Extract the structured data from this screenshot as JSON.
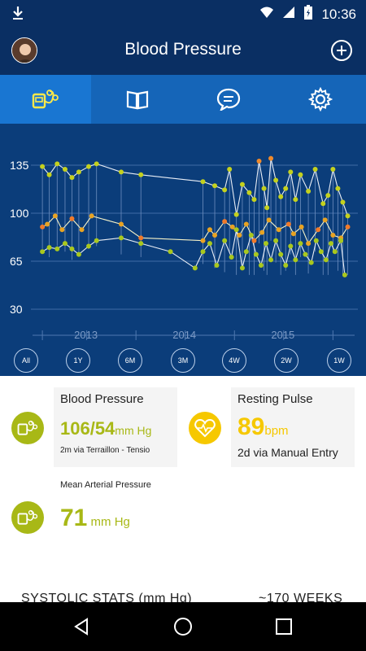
{
  "status_bar": {
    "time": "10:36"
  },
  "app_bar": {
    "title": "Blood Pressure"
  },
  "tabs": [
    {
      "name": "tab-measurements",
      "icon": "bp-monitor-icon",
      "active": true
    },
    {
      "name": "tab-journal",
      "icon": "book-icon",
      "active": false
    },
    {
      "name": "tab-messages",
      "icon": "chat-icon",
      "active": false
    },
    {
      "name": "tab-settings",
      "icon": "gear-icon",
      "active": false
    }
  ],
  "chart_data": {
    "type": "line",
    "y_ticks": [
      "135",
      "100",
      "65",
      "30"
    ],
    "x_ticks": [
      "2013",
      "2014",
      "2015"
    ],
    "ylim": [
      20,
      150
    ],
    "series": [
      {
        "values": [
          [
            2012.55,
            134
          ],
          [
            2012.62,
            128
          ],
          [
            2012.7,
            136
          ],
          [
            2012.78,
            132
          ],
          [
            2012.85,
            126
          ],
          [
            2012.92,
            130
          ],
          [
            2013.02,
            134
          ],
          [
            2013.1,
            136
          ],
          [
            2013.35,
            130
          ],
          [
            2013.55,
            128
          ],
          [
            2014.18,
            123
          ],
          [
            2014.3,
            120
          ],
          [
            2014.4,
            117
          ],
          [
            2014.45,
            132
          ],
          [
            2014.52,
            99
          ],
          [
            2014.58,
            121
          ],
          [
            2014.65,
            115
          ],
          [
            2014.7,
            110
          ],
          [
            2014.75,
            138
          ],
          [
            2014.8,
            118
          ],
          [
            2014.83,
            104
          ],
          [
            2014.87,
            140
          ],
          [
            2014.92,
            124
          ],
          [
            2014.97,
            112
          ],
          [
            2015.02,
            118
          ],
          [
            2015.07,
            130
          ],
          [
            2015.12,
            110
          ],
          [
            2015.17,
            128
          ],
          [
            2015.25,
            116
          ],
          [
            2015.32,
            132
          ],
          [
            2015.4,
            107
          ],
          [
            2015.45,
            113
          ],
          [
            2015.5,
            132
          ],
          [
            2015.55,
            118
          ],
          [
            2015.6,
            108
          ],
          [
            2015.65,
            98
          ]
        ]
      },
      {
        "values": [
          [
            2012.55,
            90
          ],
          [
            2012.6,
            92
          ],
          [
            2012.68,
            98
          ],
          [
            2012.75,
            88
          ],
          [
            2012.85,
            96
          ],
          [
            2012.95,
            88
          ],
          [
            2013.05,
            98
          ],
          [
            2013.35,
            92
          ],
          [
            2013.55,
            82
          ],
          [
            2014.18,
            80
          ],
          [
            2014.25,
            88
          ],
          [
            2014.3,
            84
          ],
          [
            2014.4,
            94
          ],
          [
            2014.48,
            90
          ],
          [
            2014.55,
            84
          ],
          [
            2014.62,
            92
          ],
          [
            2014.7,
            80
          ],
          [
            2014.78,
            86
          ],
          [
            2014.85,
            95
          ],
          [
            2014.95,
            88
          ],
          [
            2015.05,
            92
          ],
          [
            2015.1,
            85
          ],
          [
            2015.18,
            90
          ],
          [
            2015.25,
            78
          ],
          [
            2015.35,
            88
          ],
          [
            2015.42,
            95
          ],
          [
            2015.5,
            84
          ],
          [
            2015.58,
            82
          ],
          [
            2015.65,
            90
          ]
        ]
      },
      {
        "values": [
          [
            2012.55,
            72
          ],
          [
            2012.62,
            75
          ],
          [
            2012.7,
            74
          ],
          [
            2012.78,
            78
          ],
          [
            2012.85,
            74
          ],
          [
            2012.92,
            70
          ],
          [
            2013.02,
            76
          ],
          [
            2013.1,
            80
          ],
          [
            2013.35,
            82
          ],
          [
            2013.55,
            78
          ],
          [
            2013.85,
            72
          ],
          [
            2014.1,
            60
          ],
          [
            2014.18,
            72
          ],
          [
            2014.25,
            78
          ],
          [
            2014.32,
            62
          ],
          [
            2014.4,
            80
          ],
          [
            2014.47,
            68
          ],
          [
            2014.52,
            88
          ],
          [
            2014.58,
            60
          ],
          [
            2014.62,
            72
          ],
          [
            2014.67,
            84
          ],
          [
            2014.72,
            70
          ],
          [
            2014.77,
            62
          ],
          [
            2014.82,
            78
          ],
          [
            2014.87,
            66
          ],
          [
            2014.92,
            80
          ],
          [
            2014.97,
            70
          ],
          [
            2015.02,
            62
          ],
          [
            2015.07,
            76
          ],
          [
            2015.12,
            66
          ],
          [
            2015.17,
            78
          ],
          [
            2015.22,
            70
          ],
          [
            2015.28,
            64
          ],
          [
            2015.33,
            80
          ],
          [
            2015.38,
            72
          ],
          [
            2015.43,
            66
          ],
          [
            2015.48,
            78
          ],
          [
            2015.52,
            72
          ],
          [
            2015.58,
            80
          ],
          [
            2015.62,
            55
          ]
        ]
      }
    ]
  },
  "ranges": [
    "All",
    "1Y",
    "6M",
    "3M",
    "4W",
    "2W",
    "1W"
  ],
  "blood_pressure_card": {
    "title": "Blood Pressure",
    "value": "106/54",
    "unit": "mm Hg",
    "detail": "2m via Terraillon - Tensio"
  },
  "pulse_card": {
    "title": "Resting Pulse",
    "value": "89",
    "unit": "bpm",
    "detail": "2d via Manual Entry"
  },
  "map_card": {
    "title": "Mean Arterial Pressure",
    "value": "71",
    "unit": "mm Hg"
  },
  "stats": {
    "left": "SYSTOLIC STATS (mm Hg)",
    "right": "~170 WEEKS"
  },
  "colors": {
    "accent_green": "#a8b816",
    "pulse_yellow": "#f6c800",
    "app_bar": "#0a2f63",
    "chart_bg": "#0b3d7a"
  }
}
